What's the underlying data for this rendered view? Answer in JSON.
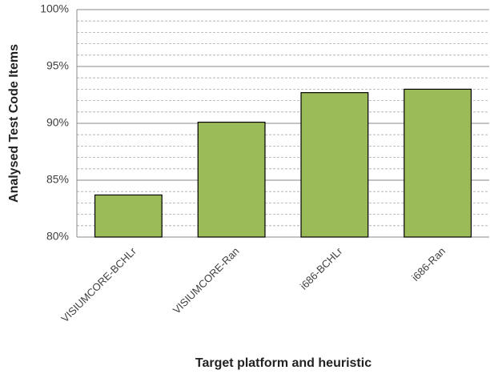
{
  "chart_data": {
    "type": "bar",
    "xlabel": "Target platform and heuristic",
    "ylabel": "Analysed Test Code Items",
    "categories": [
      "VISIUMCORE-BCHLr",
      "VISIUMCORE-Ran",
      "i686-BCHLr",
      "i686-Ran"
    ],
    "values": [
      83.7,
      90.1,
      92.7,
      93.0
    ],
    "color": "#9bbb59",
    "ylim": [
      80,
      100
    ],
    "yticks": [
      {
        "value": 80,
        "label": "80%"
      },
      {
        "value": 85,
        "label": "85%"
      },
      {
        "value": 90,
        "label": "90%"
      },
      {
        "value": 95,
        "label": "95%"
      },
      {
        "value": 100,
        "label": "100%"
      }
    ],
    "minor_yticks": [
      81,
      82,
      83,
      84,
      86,
      87,
      88,
      89,
      91,
      92,
      93,
      94,
      96,
      97,
      98,
      99
    ],
    "grid": true
  }
}
